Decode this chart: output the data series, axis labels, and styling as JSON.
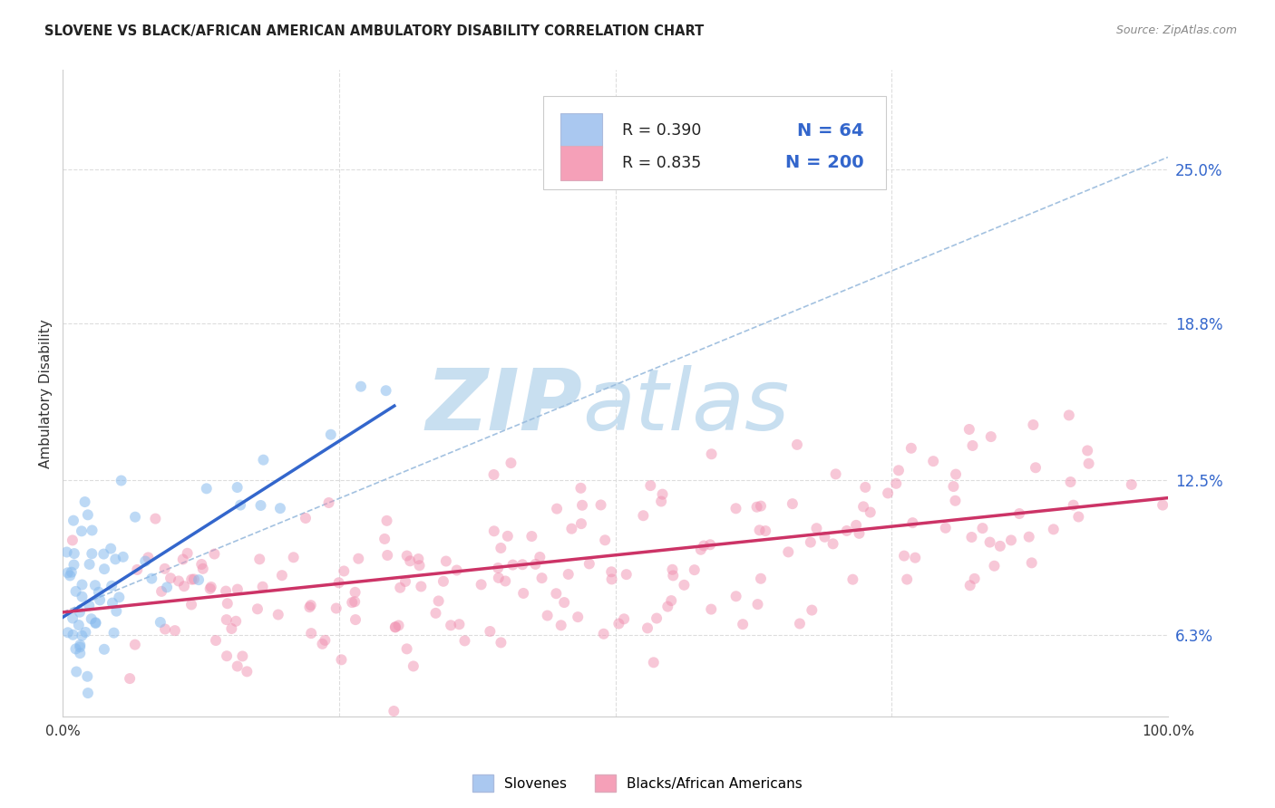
{
  "title": "SLOVENE VS BLACK/AFRICAN AMERICAN AMBULATORY DISABILITY CORRELATION CHART",
  "source": "Source: ZipAtlas.com",
  "ylabel": "Ambulatory Disability",
  "xlim": [
    0,
    1
  ],
  "ylim": [
    0.03,
    0.29
  ],
  "x_tick_labels": [
    "0.0%",
    "100.0%"
  ],
  "y_tick_labels_right": [
    "6.3%",
    "12.5%",
    "18.8%",
    "25.0%"
  ],
  "y_tick_values_right": [
    0.063,
    0.125,
    0.188,
    0.25
  ],
  "background_color": "#ffffff",
  "plot_bg_color": "#ffffff",
  "grid_color": "#dddddd",
  "watermark_zip": "ZIP",
  "watermark_atlas": "atlas",
  "watermark_color": "#c8dff0",
  "legend": {
    "slovene_color": "#aac8f0",
    "black_color": "#f5a0b8",
    "slovene_label": "Slovenes",
    "black_label": "Blacks/African Americans",
    "R_slovene": "0.390",
    "N_slovene": "64",
    "R_black": "0.835",
    "N_black": "200"
  },
  "trend_slovene": {
    "color": "#3366cc",
    "x_start": 0.0,
    "y_start": 0.07,
    "x_end": 0.3,
    "y_end": 0.155
  },
  "trend_black": {
    "color": "#cc3366",
    "x_start": 0.0,
    "y_start": 0.072,
    "x_end": 1.0,
    "y_end": 0.118
  },
  "dashed_line": {
    "color": "#99bbdd",
    "x_start": 0.0,
    "y_start": 0.072,
    "x_end": 1.0,
    "y_end": 0.255
  },
  "scatter_slovene_seed": 42,
  "scatter_black_seed": 99,
  "slovene_color": "#88bbee",
  "black_color": "#f090b0",
  "slovene_alpha": 0.55,
  "black_alpha": 0.5,
  "scatter_size": 75
}
